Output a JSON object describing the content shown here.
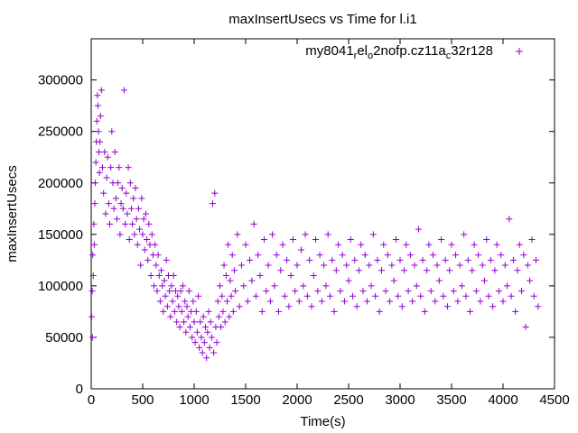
{
  "chart_data": {
    "type": "scatter",
    "title": "maxInsertUsecs vs Time for l.i1",
    "xlabel": "Time(s)",
    "ylabel": "maxInsertUsecs",
    "xlim": [
      0,
      4500
    ],
    "ylim": [
      0,
      340000
    ],
    "x_ticks": [
      0,
      500,
      1000,
      1500,
      2000,
      2500,
      3000,
      3500,
      4000,
      4500
    ],
    "y_ticks": [
      0,
      50000,
      100000,
      150000,
      200000,
      250000,
      300000
    ],
    "legend_position": "top-right",
    "marker": "plus",
    "color": "#9400d3",
    "series": [
      {
        "name_parts": [
          {
            "text": "my8041",
            "sub": false
          },
          {
            "text": "r",
            "sub": true
          },
          {
            "text": "el",
            "sub": false
          },
          {
            "text": "o",
            "sub": true
          },
          {
            "text": "2nofp.cz11a",
            "sub": false
          },
          {
            "text": "c",
            "sub": true
          },
          {
            "text": "32r128",
            "sub": false
          }
        ],
        "points": [
          [
            5,
            70000
          ],
          [
            10,
            95000
          ],
          [
            12,
            50000
          ],
          [
            15,
            130000
          ],
          [
            20,
            110000
          ],
          [
            25,
            160000
          ],
          [
            30,
            140000
          ],
          [
            35,
            180000
          ],
          [
            40,
            200000
          ],
          [
            45,
            220000
          ],
          [
            50,
            240000
          ],
          [
            55,
            260000
          ],
          [
            60,
            285000
          ],
          [
            65,
            275000
          ],
          [
            70,
            250000
          ],
          [
            75,
            230000
          ],
          [
            80,
            210000
          ],
          [
            85,
            240000
          ],
          [
            90,
            265000
          ],
          [
            100,
            290000
          ],
          [
            110,
            215000
          ],
          [
            120,
            190000
          ],
          [
            130,
            230000
          ],
          [
            140,
            170000
          ],
          [
            150,
            205000
          ],
          [
            160,
            225000
          ],
          [
            170,
            180000
          ],
          [
            180,
            160000
          ],
          [
            190,
            215000
          ],
          [
            200,
            250000
          ],
          [
            210,
            200000
          ],
          [
            220,
            175000
          ],
          [
            230,
            230000
          ],
          [
            240,
            185000
          ],
          [
            250,
            165000
          ],
          [
            260,
            200000
          ],
          [
            270,
            215000
          ],
          [
            280,
            150000
          ],
          [
            290,
            180000
          ],
          [
            300,
            195000
          ],
          [
            310,
            175000
          ],
          [
            320,
            290000
          ],
          [
            330,
            160000
          ],
          [
            340,
            190000
          ],
          [
            350,
            170000
          ],
          [
            360,
            215000
          ],
          [
            370,
            145000
          ],
          [
            380,
            200000
          ],
          [
            390,
            175000
          ],
          [
            400,
            160000
          ],
          [
            410,
            185000
          ],
          [
            420,
            150000
          ],
          [
            430,
            195000
          ],
          [
            440,
            165000
          ],
          [
            450,
            140000
          ],
          [
            460,
            175000
          ],
          [
            470,
            155000
          ],
          [
            480,
            120000
          ],
          [
            490,
            185000
          ],
          [
            500,
            150000
          ],
          [
            510,
            165000
          ],
          [
            520,
            135000
          ],
          [
            530,
            170000
          ],
          [
            540,
            145000
          ],
          [
            550,
            125000
          ],
          [
            560,
            160000
          ],
          [
            570,
            140000
          ],
          [
            580,
            110000
          ],
          [
            590,
            150000
          ],
          [
            600,
            130000
          ],
          [
            610,
            100000
          ],
          [
            620,
            140000
          ],
          [
            630,
            120000
          ],
          [
            640,
            95000
          ],
          [
            650,
            130000
          ],
          [
            660,
            110000
          ],
          [
            670,
            85000
          ],
          [
            680,
            115000
          ],
          [
            690,
            100000
          ],
          [
            700,
            75000
          ],
          [
            710,
            105000
          ],
          [
            720,
            90000
          ],
          [
            730,
            125000
          ],
          [
            740,
            80000
          ],
          [
            750,
            110000
          ],
          [
            760,
            95000
          ],
          [
            770,
            70000
          ],
          [
            780,
            100000
          ],
          [
            790,
            85000
          ],
          [
            800,
            110000
          ],
          [
            810,
            75000
          ],
          [
            820,
            95000
          ],
          [
            830,
            65000
          ],
          [
            840,
            90000
          ],
          [
            850,
            80000
          ],
          [
            860,
            60000
          ],
          [
            870,
            95000
          ],
          [
            880,
            75000
          ],
          [
            890,
            100000
          ],
          [
            900,
            65000
          ],
          [
            910,
            85000
          ],
          [
            920,
            55000
          ],
          [
            930,
            80000
          ],
          [
            940,
            70000
          ],
          [
            950,
            95000
          ],
          [
            960,
            60000
          ],
          [
            970,
            75000
          ],
          [
            980,
            50000
          ],
          [
            990,
            85000
          ],
          [
            1000,
            65000
          ],
          [
            1010,
            45000
          ],
          [
            1020,
            75000
          ],
          [
            1030,
            55000
          ],
          [
            1040,
            90000
          ],
          [
            1050,
            40000
          ],
          [
            1060,
            65000
          ],
          [
            1070,
            50000
          ],
          [
            1080,
            35000
          ],
          [
            1090,
            70000
          ],
          [
            1100,
            45000
          ],
          [
            1110,
            60000
          ],
          [
            1120,
            30000
          ],
          [
            1130,
            55000
          ],
          [
            1140,
            75000
          ],
          [
            1150,
            40000
          ],
          [
            1160,
            65000
          ],
          [
            1170,
            50000
          ],
          [
            1180,
            180000
          ],
          [
            1190,
            35000
          ],
          [
            1200,
            190000
          ],
          [
            1210,
            60000
          ],
          [
            1220,
            45000
          ],
          [
            1230,
            85000
          ],
          [
            1240,
            70000
          ],
          [
            1250,
            100000
          ],
          [
            1260,
            60000
          ],
          [
            1270,
            90000
          ],
          [
            1280,
            75000
          ],
          [
            1290,
            120000
          ],
          [
            1300,
            65000
          ],
          [
            1310,
            110000
          ],
          [
            1320,
            85000
          ],
          [
            1330,
            140000
          ],
          [
            1340,
            70000
          ],
          [
            1350,
            105000
          ],
          [
            1360,
            90000
          ],
          [
            1370,
            130000
          ],
          [
            1380,
            75000
          ],
          [
            1390,
            115000
          ],
          [
            1400,
            95000
          ],
          [
            1420,
            150000
          ],
          [
            1440,
            80000
          ],
          [
            1460,
            120000
          ],
          [
            1480,
            100000
          ],
          [
            1500,
            140000
          ],
          [
            1520,
            85000
          ],
          [
            1540,
            125000
          ],
          [
            1560,
            105000
          ],
          [
            1580,
            160000
          ],
          [
            1600,
            90000
          ],
          [
            1620,
            130000
          ],
          [
            1640,
            110000
          ],
          [
            1660,
            75000
          ],
          [
            1680,
            145000
          ],
          [
            1700,
            95000
          ],
          [
            1720,
            120000
          ],
          [
            1740,
            85000
          ],
          [
            1760,
            150000
          ],
          [
            1780,
            100000
          ],
          [
            1800,
            130000
          ],
          [
            1820,
            75000
          ],
          [
            1840,
            115000
          ],
          [
            1860,
            140000
          ],
          [
            1880,
            90000
          ],
          [
            1900,
            125000
          ],
          [
            1920,
            80000
          ],
          [
            1940,
            110000
          ],
          [
            1960,
            145000
          ],
          [
            1980,
            95000
          ],
          [
            2000,
            120000
          ],
          [
            2020,
            85000
          ],
          [
            2040,
            135000
          ],
          [
            2060,
            100000
          ],
          [
            2080,
            150000
          ],
          [
            2100,
            90000
          ],
          [
            2120,
            125000
          ],
          [
            2140,
            80000
          ],
          [
            2160,
            110000
          ],
          [
            2180,
            145000
          ],
          [
            2200,
            95000
          ],
          [
            2220,
            130000
          ],
          [
            2240,
            85000
          ],
          [
            2260,
            120000
          ],
          [
            2280,
            100000
          ],
          [
            2300,
            150000
          ],
          [
            2320,
            90000
          ],
          [
            2340,
            125000
          ],
          [
            2360,
            75000
          ],
          [
            2380,
            115000
          ],
          [
            2400,
            140000
          ],
          [
            2420,
            95000
          ],
          [
            2440,
            130000
          ],
          [
            2460,
            85000
          ],
          [
            2480,
            120000
          ],
          [
            2500,
            105000
          ],
          [
            2520,
            145000
          ],
          [
            2540,
            90000
          ],
          [
            2560,
            125000
          ],
          [
            2580,
            80000
          ],
          [
            2600,
            115000
          ],
          [
            2620,
            140000
          ],
          [
            2640,
            95000
          ],
          [
            2660,
            130000
          ],
          [
            2680,
            85000
          ],
          [
            2700,
            120000
          ],
          [
            2720,
            100000
          ],
          [
            2740,
            150000
          ],
          [
            2760,
            90000
          ],
          [
            2780,
            125000
          ],
          [
            2800,
            75000
          ],
          [
            2820,
            115000
          ],
          [
            2840,
            140000
          ],
          [
            2860,
            95000
          ],
          [
            2880,
            130000
          ],
          [
            2900,
            85000
          ],
          [
            2920,
            120000
          ],
          [
            2940,
            105000
          ],
          [
            2960,
            145000
          ],
          [
            2980,
            90000
          ],
          [
            3000,
            125000
          ],
          [
            3020,
            80000
          ],
          [
            3040,
            115000
          ],
          [
            3060,
            140000
          ],
          [
            3080,
            95000
          ],
          [
            3100,
            130000
          ],
          [
            3120,
            85000
          ],
          [
            3140,
            120000
          ],
          [
            3160,
            100000
          ],
          [
            3180,
            155000
          ],
          [
            3200,
            90000
          ],
          [
            3220,
            125000
          ],
          [
            3240,
            75000
          ],
          [
            3260,
            115000
          ],
          [
            3280,
            140000
          ],
          [
            3300,
            95000
          ],
          [
            3320,
            130000
          ],
          [
            3340,
            85000
          ],
          [
            3360,
            120000
          ],
          [
            3380,
            105000
          ],
          [
            3400,
            145000
          ],
          [
            3420,
            90000
          ],
          [
            3440,
            125000
          ],
          [
            3460,
            80000
          ],
          [
            3480,
            115000
          ],
          [
            3500,
            140000
          ],
          [
            3520,
            95000
          ],
          [
            3540,
            130000
          ],
          [
            3560,
            85000
          ],
          [
            3580,
            120000
          ],
          [
            3600,
            100000
          ],
          [
            3620,
            150000
          ],
          [
            3640,
            90000
          ],
          [
            3660,
            125000
          ],
          [
            3680,
            75000
          ],
          [
            3700,
            115000
          ],
          [
            3720,
            140000
          ],
          [
            3740,
            95000
          ],
          [
            3760,
            130000
          ],
          [
            3780,
            85000
          ],
          [
            3800,
            120000
          ],
          [
            3820,
            105000
          ],
          [
            3840,
            145000
          ],
          [
            3860,
            90000
          ],
          [
            3880,
            125000
          ],
          [
            3900,
            80000
          ],
          [
            3920,
            115000
          ],
          [
            3940,
            140000
          ],
          [
            3960,
            95000
          ],
          [
            3980,
            130000
          ],
          [
            4000,
            85000
          ],
          [
            4020,
            120000
          ],
          [
            4040,
            100000
          ],
          [
            4060,
            165000
          ],
          [
            4080,
            90000
          ],
          [
            4100,
            125000
          ],
          [
            4120,
            75000
          ],
          [
            4140,
            115000
          ],
          [
            4160,
            140000
          ],
          [
            4180,
            95000
          ],
          [
            4200,
            130000
          ],
          [
            4220,
            60000
          ],
          [
            4240,
            120000
          ],
          [
            4260,
            105000
          ],
          [
            4280,
            145000
          ],
          [
            4300,
            90000
          ],
          [
            4320,
            125000
          ],
          [
            4340,
            80000
          ]
        ]
      }
    ]
  }
}
